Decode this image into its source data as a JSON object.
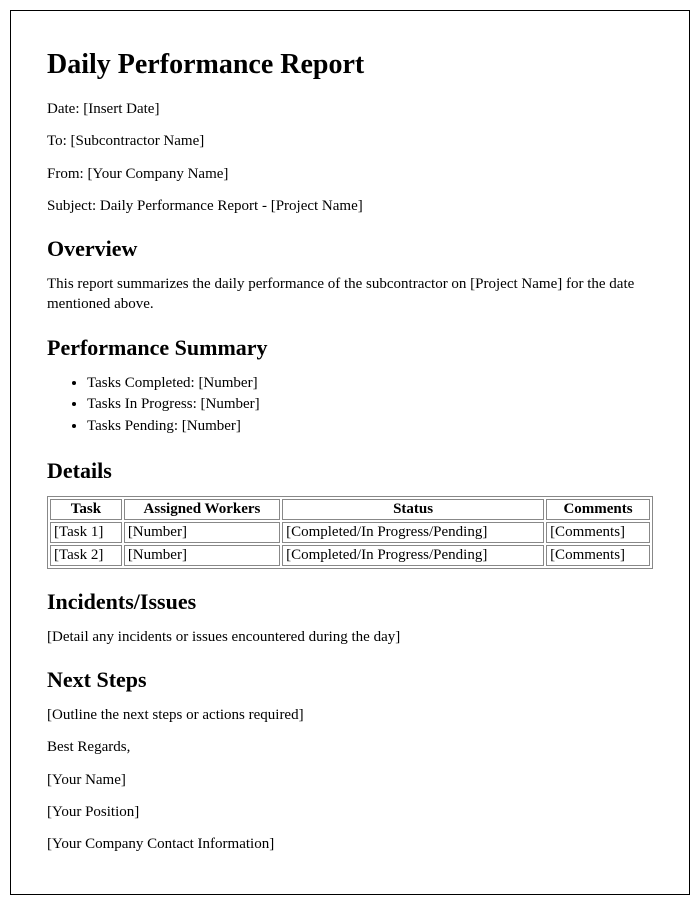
{
  "title": "Daily Performance Report",
  "meta": {
    "date_label": "Date: ",
    "date_value": "[Insert Date]",
    "to_label": "To: ",
    "to_value": "[Subcontractor Name]",
    "from_label": "From: ",
    "from_value": "[Your Company Name]",
    "subject_label": "Subject: ",
    "subject_value": "Daily Performance Report - [Project Name]"
  },
  "overview": {
    "heading": "Overview",
    "body": "This report summarizes the daily performance of the subcontractor on [Project Name] for the date mentioned above."
  },
  "summary": {
    "heading": "Performance Summary",
    "items": [
      "Tasks Completed: [Number]",
      "Tasks In Progress: [Number]",
      "Tasks Pending: [Number]"
    ]
  },
  "details": {
    "heading": "Details",
    "columns": [
      "Task",
      "Assigned Workers",
      "Status",
      "Comments"
    ],
    "rows": [
      [
        "[Task 1]",
        "[Number]",
        "[Completed/In Progress/Pending]",
        "[Comments]"
      ],
      [
        "[Task 2]",
        "[Number]",
        "[Completed/In Progress/Pending]",
        "[Comments]"
      ]
    ]
  },
  "incidents": {
    "heading": "Incidents/Issues",
    "body": "[Detail any incidents or issues encountered during the day]"
  },
  "next_steps": {
    "heading": "Next Steps",
    "body": "[Outline the next steps or actions required]"
  },
  "signoff": {
    "regards": "Best Regards,",
    "name": "[Your Name]",
    "position": "[Your Position]",
    "contact": "[Your Company Contact Information]"
  }
}
